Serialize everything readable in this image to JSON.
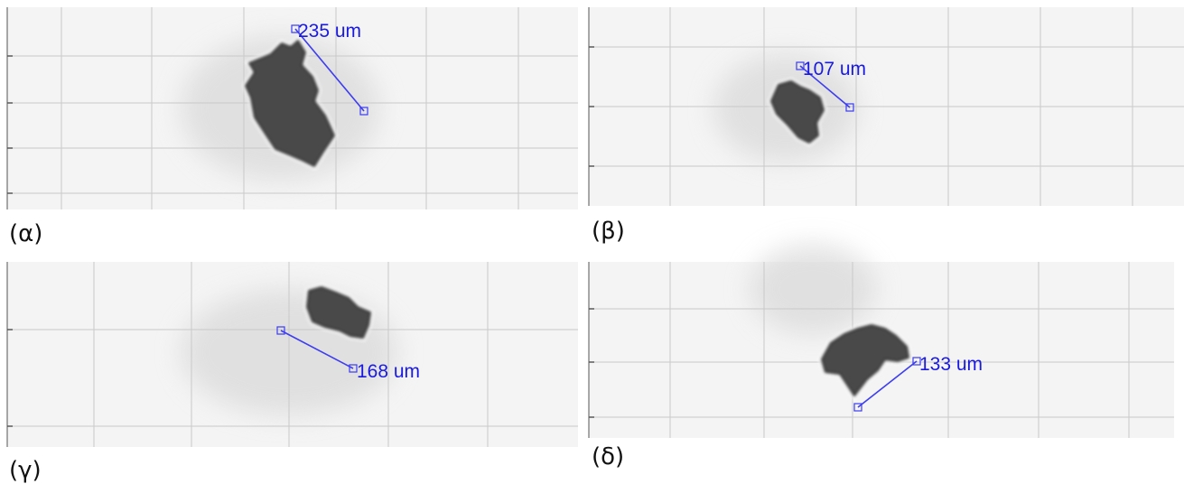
{
  "panels": [
    {
      "label": "(α)",
      "measurement": "235 um"
    },
    {
      "label": "(β)",
      "measurement": "107 um"
    },
    {
      "label": "(γ)",
      "measurement": "168 um"
    },
    {
      "label": "(δ)",
      "measurement": "133 um"
    }
  ]
}
